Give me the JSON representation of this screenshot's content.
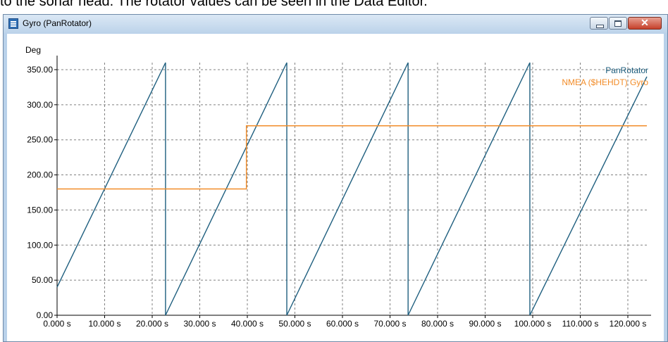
{
  "document_text": "to the sonar head. The rotator values can be seen in the Data Editor.",
  "window": {
    "title": "Gyro (PanRotator)",
    "icon": "app-icon",
    "close_glyph": "✕"
  },
  "chart_data": {
    "type": "line",
    "title": "",
    "xlabel": "",
    "ylabel": "Deg",
    "xlim": [
      0,
      124
    ],
    "ylim": [
      0,
      360
    ],
    "grid": true,
    "legend_position": "top-right",
    "x_ticks": [
      "0.000 s",
      "10.000 s",
      "20.000 s",
      "30.000 s",
      "40.000 s",
      "50.000 s",
      "60.000 s",
      "70.000 s",
      "80.000 s",
      "90.000 s",
      "100.000 s",
      "110.000 s",
      "120.000 s"
    ],
    "x_tick_values": [
      0,
      10,
      20,
      30,
      40,
      50,
      60,
      70,
      80,
      90,
      100,
      110,
      120
    ],
    "y_ticks": [
      "0.00",
      "50.00",
      "100.00",
      "150.00",
      "200.00",
      "250.00",
      "300.00",
      "350.00"
    ],
    "y_tick_values": [
      0,
      50,
      100,
      150,
      200,
      250,
      300,
      350
    ],
    "series": [
      {
        "name": "PanRotator",
        "color": "#1f5f7f",
        "x": [
          0,
          22.8,
          22.8,
          48.3,
          48.3,
          73.8,
          73.8,
          99.4,
          99.4,
          124
        ],
        "y": [
          40,
          360,
          0,
          360,
          0,
          360,
          0,
          360,
          0,
          340
        ]
      },
      {
        "name": "NMEA ($HEHDT) Gyro",
        "color": "#f28c28",
        "x": [
          0,
          39.8,
          39.8,
          124
        ],
        "y": [
          180,
          180,
          270,
          270
        ]
      }
    ]
  }
}
